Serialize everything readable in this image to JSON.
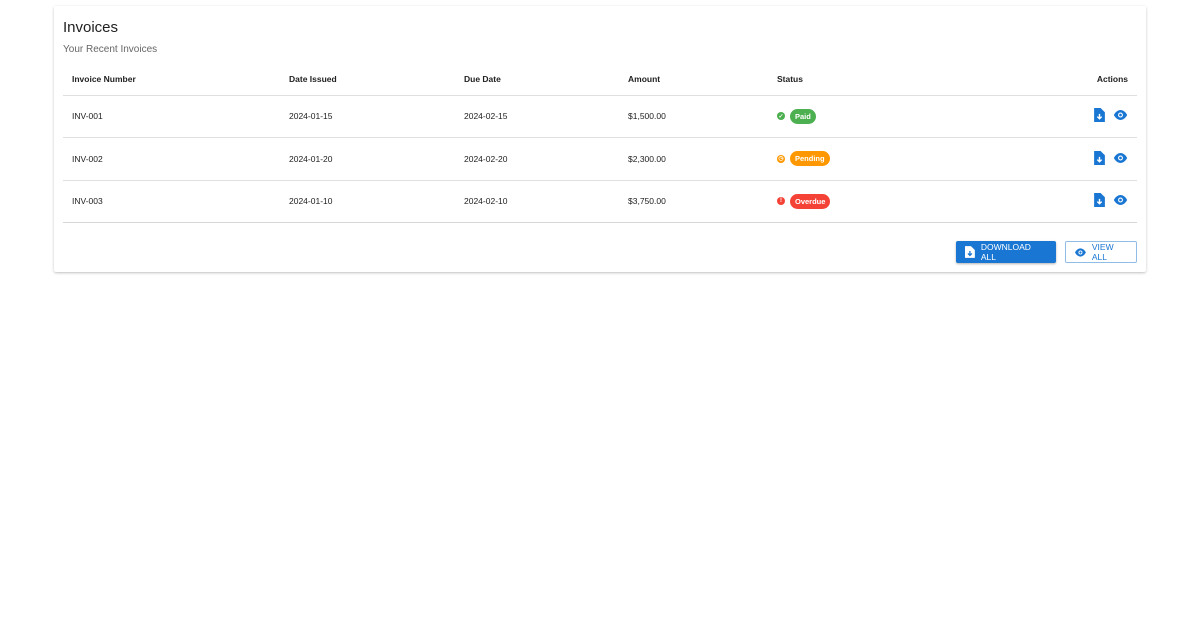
{
  "card": {
    "title": "Invoices",
    "subtitle": "Your Recent Invoices"
  },
  "table": {
    "headers": [
      "Invoice Number",
      "Date Issued",
      "Due Date",
      "Amount",
      "Status",
      "Actions"
    ],
    "rows": [
      {
        "number": "INV-001",
        "issued": "2024-01-15",
        "due": "2024-02-15",
        "amount": "$1,500.00",
        "status": "Paid",
        "status_color": "#4caf50",
        "status_icon": "check-circle-icon"
      },
      {
        "number": "INV-002",
        "issued": "2024-01-20",
        "due": "2024-02-20",
        "amount": "$2,300.00",
        "status": "Pending",
        "status_color": "#ff9800",
        "status_icon": "clock-icon"
      },
      {
        "number": "INV-003",
        "issued": "2024-01-10",
        "due": "2024-02-10",
        "amount": "$3,750.00",
        "status": "Overdue",
        "status_color": "#f44336",
        "status_icon": "error-icon"
      }
    ]
  },
  "actions": {
    "download_all": "DOWNLOAD ALL",
    "view_all": "VIEW ALL"
  },
  "colors": {
    "primary": "#1976d2"
  }
}
